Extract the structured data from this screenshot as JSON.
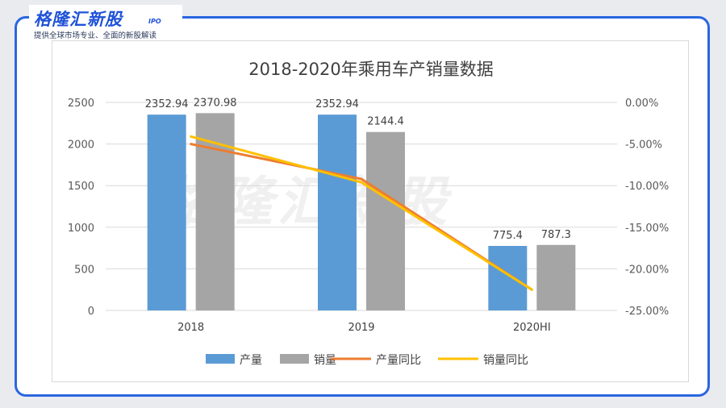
{
  "brand": {
    "logo": "格隆汇新股",
    "sub": "IPO",
    "tagline": "提供全球市场专业、全面的新股解读"
  },
  "colors": {
    "frame": "#2a66e0",
    "production": "#5b9bd5",
    "sales": "#a5a5a5",
    "production_yoy": "#ed7d31",
    "sales_yoy": "#ffc000"
  },
  "chart_data": {
    "type": "bar",
    "title": "2018-2020年乘用车产销量数据",
    "categories": [
      "2018",
      "2019",
      "2020HI"
    ],
    "series": [
      {
        "name": "产量",
        "type": "bar",
        "values": [
          2352.94,
          2352.94,
          775.4
        ],
        "labels": [
          "2352.94",
          "2352.94",
          "775.4"
        ]
      },
      {
        "name": "销量",
        "type": "bar",
        "values": [
          2370.98,
          2144.4,
          787.3
        ],
        "labels": [
          "2370.98",
          "2144.4",
          "787.3"
        ]
      },
      {
        "name": "产量同比",
        "type": "line",
        "axis": "right",
        "values": [
          -5.0,
          -9.2,
          -22.5
        ]
      },
      {
        "name": "销量同比",
        "type": "line",
        "axis": "right",
        "values": [
          -4.1,
          -9.6,
          -22.5
        ]
      }
    ],
    "y_left": {
      "min": 0,
      "max": 2500,
      "ticks": [
        "0",
        "500",
        "1000",
        "1500",
        "2000",
        "2500"
      ]
    },
    "y_right": {
      "min": -25,
      "max": 0,
      "ticks": [
        "0.00%",
        "-5.00%",
        "-10.00%",
        "-15.00%",
        "-20.00%",
        "-25.00%"
      ]
    },
    "watermark": "格隆汇新股",
    "grid": true,
    "legend": "bottom"
  }
}
